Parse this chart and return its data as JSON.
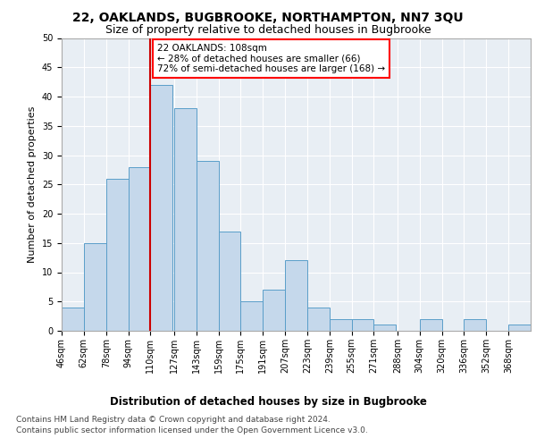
{
  "title1": "22, OAKLANDS, BUGBROOKE, NORTHAMPTON, NN7 3QU",
  "title2": "Size of property relative to detached houses in Bugbrooke",
  "xlabel": "Distribution of detached houses by size in Bugbrooke",
  "ylabel": "Number of detached properties",
  "bins": [
    46,
    62,
    78,
    94,
    110,
    127,
    143,
    159,
    175,
    191,
    207,
    223,
    239,
    255,
    271,
    288,
    304,
    320,
    336,
    352,
    368
  ],
  "values": [
    4,
    15,
    26,
    28,
    42,
    38,
    29,
    17,
    5,
    7,
    12,
    4,
    2,
    2,
    1,
    0,
    2,
    0,
    2,
    0,
    1
  ],
  "bar_color": "#c5d8eb",
  "bar_edge_color": "#5a9ec9",
  "vline_x": 110,
  "annotation_text": "22 OAKLANDS: 108sqm\n← 28% of detached houses are smaller (66)\n72% of semi-detached houses are larger (168) →",
  "annotation_box_color": "white",
  "annotation_box_edge_color": "red",
  "vline_color": "#cc0000",
  "ylim": [
    0,
    50
  ],
  "yticks": [
    0,
    5,
    10,
    15,
    20,
    25,
    30,
    35,
    40,
    45,
    50
  ],
  "background_color": "#e8eef4",
  "footer1": "Contains HM Land Registry data © Crown copyright and database right 2024.",
  "footer2": "Contains public sector information licensed under the Open Government Licence v3.0.",
  "title1_fontsize": 10,
  "title2_fontsize": 9,
  "xlabel_fontsize": 8.5,
  "ylabel_fontsize": 8,
  "annotation_fontsize": 7.5,
  "tick_fontsize": 7,
  "footer_fontsize": 6.5
}
